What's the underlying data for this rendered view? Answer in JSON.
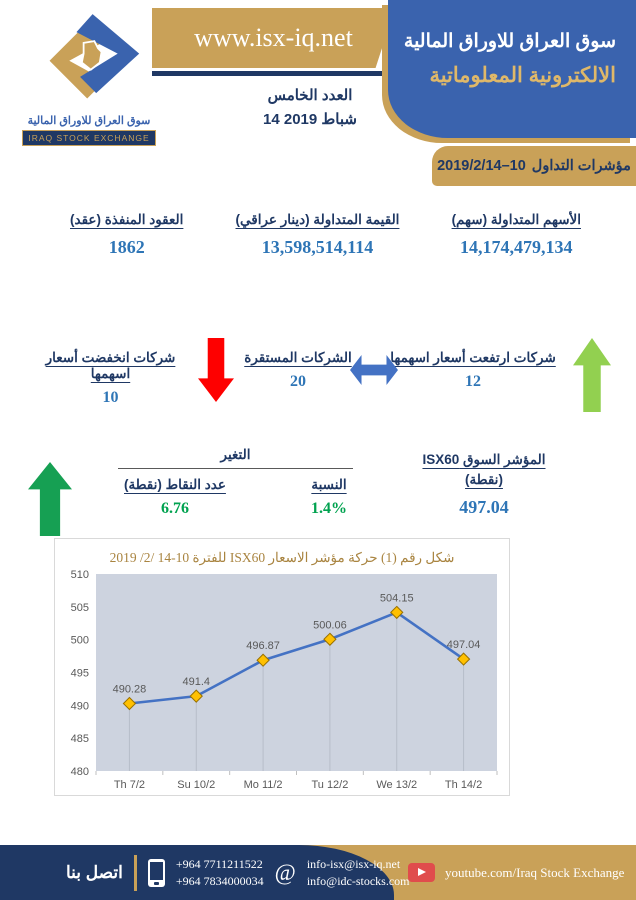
{
  "colors": {
    "navy": "#1f3864",
    "panel_blue": "#3a63ae",
    "gold": "#c9a158",
    "value_blue": "#2e75b6",
    "green": "#00a24f",
    "light_green_arrow": "#92d050",
    "dark_green_arrow": "#16a053",
    "red_arrow": "#fe0000",
    "double_arrow_blue": "#4472c4",
    "chart_line": "#4472c4",
    "chart_marker": "#ffc000",
    "chart_plot_bg": "#cdd3df",
    "axis_text": "#595959",
    "chart_title_tan": "#a98440"
  },
  "header": {
    "logo_caption_ar": "سوق العراق للاوراق المالية",
    "logo_caption_en": "IRAQ STOCK EXCHANGE",
    "website": "www.isx-iq.net",
    "issue_line1": "العدد الخامس",
    "issue_line2": "14 شباط 2019",
    "title_line1": "سوق العراق للاوراق المالية",
    "title_line2": "الالكترونية المعلوماتية",
    "ribbon_label": "مؤشرات التداول",
    "ribbon_range": "2019/2/14–10"
  },
  "stats": [
    {
      "label": "الأسهم المتداولة (سهم)",
      "value": "14,174,479,134"
    },
    {
      "label": "القيمة المتداولة (دينار عراقي)",
      "value": "13,598,514,114"
    },
    {
      "label": "العقود المنفذة (عقد)",
      "value": "1862"
    }
  ],
  "movers": {
    "up": {
      "label": "شركات ارتفعت أسعار اسهمها",
      "value": "12"
    },
    "stable": {
      "label": "الشركات المستقرة",
      "value": "20"
    },
    "down": {
      "label": "شركات انخفضت أسعار اسهمها",
      "value": "10"
    }
  },
  "index": {
    "label_line1": "المؤشر السوق ISX60",
    "label_line2": "(نقطة)",
    "value": "497.04",
    "change_title": "التغير",
    "percent_label": "النسبة",
    "percent_value": "1.4%",
    "points_label": "عدد النقاط (نقطة)",
    "points_value": "6.76"
  },
  "chart_data": {
    "type": "line",
    "title": "شكل رقم (1) حركة مؤشر الاسعار ISX60 للفترة 10-14 /2/ 2019",
    "categories": [
      "Th 7/2",
      "Su 10/2",
      "Mo 11/2",
      "Tu 12/2",
      "We 13/2",
      "Th 14/2"
    ],
    "values": [
      490.28,
      491.4,
      496.87,
      500.06,
      504.15,
      497.04
    ],
    "data_labels": [
      "490.28",
      "491.4",
      "496.87",
      "500.06",
      "504.15",
      "497.04"
    ],
    "ylim": [
      480,
      510
    ],
    "ytick_step": 5,
    "xlabel": "",
    "ylabel": "",
    "legend": "none",
    "grid": false,
    "marker": "diamond"
  },
  "footer": {
    "contact_label": "اتصل بنا",
    "phones": [
      "+964 7711211522",
      "+964 7834000034"
    ],
    "emails": [
      "info-isx@isx-iq.net",
      "info@idc-stocks.com"
    ],
    "youtube": "youtube.com/Iraq Stock Exchange"
  }
}
